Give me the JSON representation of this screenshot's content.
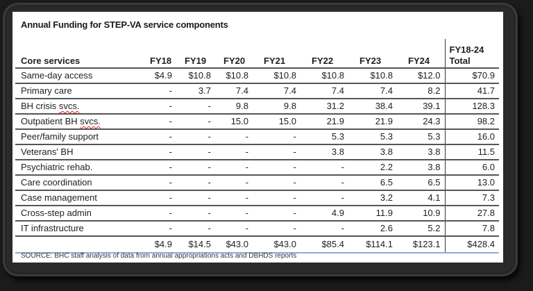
{
  "title": "Annual Funding for STEP-VA service components",
  "table": {
    "headers": {
      "name": "Core services",
      "fy18": "FY18",
      "fy19": "FY19",
      "fy20": "FY20",
      "fy21": "FY21",
      "fy22": "FY22",
      "fy23": "FY23",
      "fy24": "FY24",
      "total_line1": "FY18-24",
      "total_line2": "Total"
    },
    "rows": [
      {
        "name": "Same-day access",
        "fy18": "$4.9",
        "fy19": "$10.8",
        "fy20": "$10.8",
        "fy21": "$10.8",
        "fy22": "$10.8",
        "fy23": "$10.8",
        "fy24": "$12.0",
        "total": "$70.9"
      },
      {
        "name": "Primary care",
        "fy18": "-",
        "fy19": "3.7",
        "fy20": "7.4",
        "fy21": "7.4",
        "fy22": "7.4",
        "fy23": "7.4",
        "fy24": "8.2",
        "total": "41.7"
      },
      {
        "name_prefix": "BH crisis ",
        "name_squiggle": "svcs.",
        "fy18": "-",
        "fy19": "-",
        "fy20": "9.8",
        "fy21": "9.8",
        "fy22": "31.2",
        "fy23": "38.4",
        "fy24": "39.1",
        "total": "128.3"
      },
      {
        "name_prefix": "Outpatient BH ",
        "name_squiggle": "svcs.",
        "fy18": "-",
        "fy19": "-",
        "fy20": "15.0",
        "fy21": "15.0",
        "fy22": "21.9",
        "fy23": "21.9",
        "fy24": "24.3",
        "total": "98.2"
      },
      {
        "name": "Peer/family support",
        "fy18": "-",
        "fy19": "-",
        "fy20": "-",
        "fy21": "-",
        "fy22": "5.3",
        "fy23": "5.3",
        "fy24": "5.3",
        "total": "16.0"
      },
      {
        "name": "Veterans' BH",
        "fy18": "-",
        "fy19": "-",
        "fy20": "-",
        "fy21": "-",
        "fy22": "3.8",
        "fy23": "3.8",
        "fy24": "3.8",
        "total": "11.5"
      },
      {
        "name": "Psychiatric rehab.",
        "fy18": "-",
        "fy19": "-",
        "fy20": "-",
        "fy21": "-",
        "fy22": "-",
        "fy23": "2.2",
        "fy24": "3.8",
        "total": "6.0"
      },
      {
        "name": "Care coordination",
        "fy18": "-",
        "fy19": "-",
        "fy20": "-",
        "fy21": "-",
        "fy22": "-",
        "fy23": "6.5",
        "fy24": "6.5",
        "total": "13.0"
      },
      {
        "name": "Case management",
        "fy18": "-",
        "fy19": "-",
        "fy20": "-",
        "fy21": "-",
        "fy22": "-",
        "fy23": "3.2",
        "fy24": "4.1",
        "total": "7.3"
      },
      {
        "name": "Cross-step admin",
        "fy18": "-",
        "fy19": "-",
        "fy20": "-",
        "fy21": "-",
        "fy22": "4.9",
        "fy23": "11.9",
        "fy24": "10.9",
        "total": "27.8"
      },
      {
        "name": "IT infrastructure",
        "fy18": "-",
        "fy19": "-",
        "fy20": "-",
        "fy21": "-",
        "fy22": "-",
        "fy23": "2.6",
        "fy24": "5.2",
        "total": "7.8"
      }
    ],
    "totals": {
      "name": "",
      "fy18": "$4.9",
      "fy19": "$14.5",
      "fy20": "$43.0",
      "fy21": "$43.0",
      "fy22": "$85.4",
      "fy23": "$114.1",
      "fy24": "$123.1",
      "total": "$428.4"
    }
  },
  "source": "SOURCE: BHC staff analysis of data from annual appropriations acts and DBHDS reports"
}
